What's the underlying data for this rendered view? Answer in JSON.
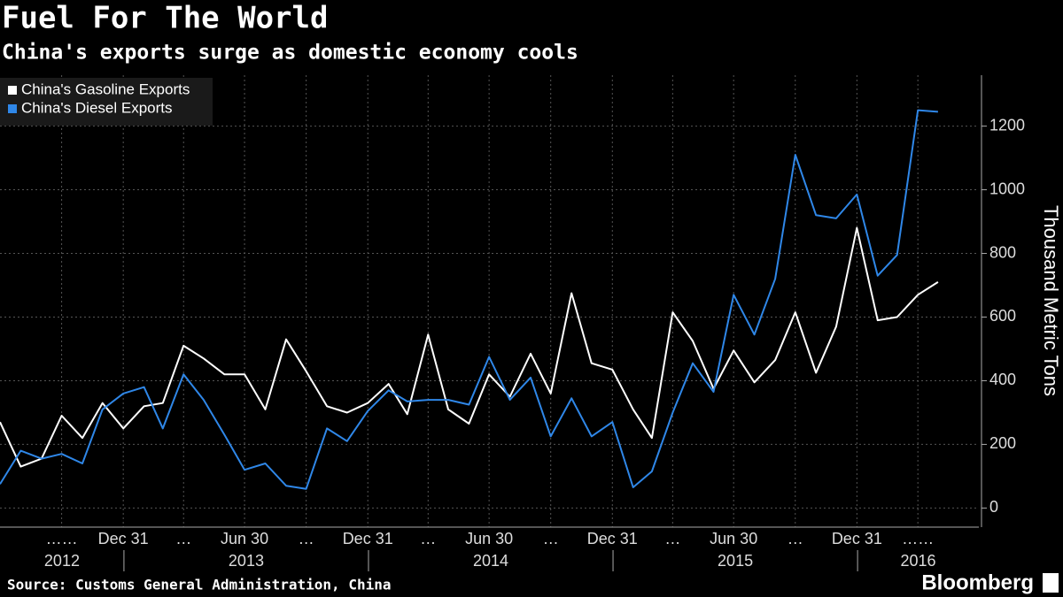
{
  "chart_data": {
    "type": "line",
    "title": "Fuel For The World",
    "subtitle": "China's exports surge as domestic economy cools",
    "source": "Source: Customs General Administration, China",
    "brand": "Bloomberg",
    "y_axis_label": "Thousand Metric Tons",
    "x": [
      "2012-06-30",
      "2012-07-31",
      "2012-08-31",
      "2012-09-30",
      "2012-10-31",
      "2012-11-30",
      "2012-12-31",
      "2013-01-31",
      "2013-02-28",
      "2013-03-31",
      "2013-04-30",
      "2013-05-31",
      "2013-06-30",
      "2013-07-31",
      "2013-08-31",
      "2013-09-30",
      "2013-10-31",
      "2013-11-30",
      "2013-12-31",
      "2014-01-31",
      "2014-02-28",
      "2014-03-31",
      "2014-04-30",
      "2014-05-31",
      "2014-06-30",
      "2014-07-31",
      "2014-08-31",
      "2014-09-30",
      "2014-10-31",
      "2014-11-30",
      "2014-12-31",
      "2015-01-31",
      "2015-02-28",
      "2015-03-31",
      "2015-04-30",
      "2015-05-31",
      "2015-06-30",
      "2015-07-31",
      "2015-08-31",
      "2015-09-30",
      "2015-10-31",
      "2015-11-30",
      "2015-12-31",
      "2016-01-31",
      "2016-02-29",
      "2016-03-31",
      "2016-04-30"
    ],
    "series": [
      {
        "name": "China's Gasoline Exports",
        "color": "#ffffff",
        "values": [
          270,
          130,
          155,
          290,
          220,
          330,
          250,
          320,
          330,
          510,
          470,
          420,
          420,
          310,
          530,
          430,
          320,
          300,
          330,
          390,
          295,
          545,
          310,
          265,
          420,
          350,
          485,
          360,
          675,
          455,
          435,
          310,
          220,
          615,
          525,
          375,
          495,
          395,
          465,
          615,
          425,
          570,
          880,
          590,
          600,
          670,
          710
        ]
      },
      {
        "name": "China's Diesel Exports",
        "color": "#2f87e8",
        "values": [
          75,
          180,
          155,
          170,
          140,
          310,
          360,
          380,
          250,
          420,
          340,
          230,
          120,
          140,
          70,
          60,
          250,
          210,
          305,
          370,
          335,
          340,
          340,
          325,
          475,
          340,
          410,
          225,
          345,
          225,
          270,
          65,
          115,
          300,
          455,
          365,
          670,
          545,
          720,
          1110,
          920,
          910,
          985,
          730,
          795,
          1250,
          1245
        ]
      }
    ],
    "xlim": [
      "2012-06-30",
      "2016-06-30"
    ],
    "xticks": [
      {
        "value": "2012-09-30",
        "label": "……"
      },
      {
        "value": "2012-12-31",
        "label": "Dec 31"
      },
      {
        "value": "2013-03-31",
        "label": "…"
      },
      {
        "value": "2013-06-30",
        "label": "Jun 30"
      },
      {
        "value": "2013-09-30",
        "label": "…"
      },
      {
        "value": "2013-12-31",
        "label": "Dec 31"
      },
      {
        "value": "2014-03-31",
        "label": "…"
      },
      {
        "value": "2014-06-30",
        "label": "Jun 30"
      },
      {
        "value": "2014-09-30",
        "label": "…"
      },
      {
        "value": "2014-12-31",
        "label": "Dec 31"
      },
      {
        "value": "2015-03-31",
        "label": "…"
      },
      {
        "value": "2015-06-30",
        "label": "Jun 30"
      },
      {
        "value": "2015-09-30",
        "label": "…"
      },
      {
        "value": "2015-12-31",
        "label": "Dec 31"
      },
      {
        "value": "2016-03-31",
        "label": "……"
      }
    ],
    "years": [
      "2012",
      "2013",
      "2014",
      "2015",
      "2016"
    ],
    "ylim": [
      -60,
      1360
    ],
    "yticks": [
      0,
      200,
      400,
      600,
      800,
      1000,
      1200
    ],
    "grid": true,
    "legend": "top-left"
  }
}
